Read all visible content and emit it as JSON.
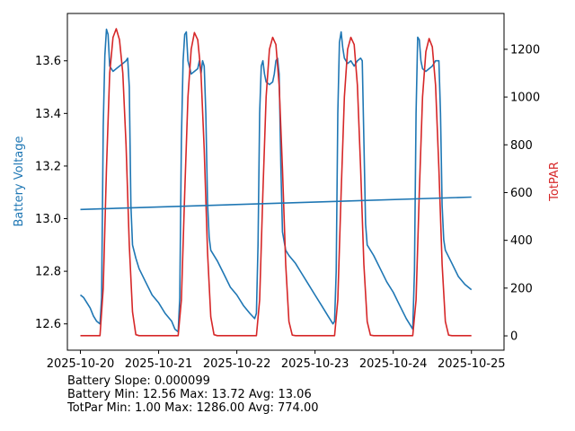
{
  "chart_data": {
    "type": "line",
    "xlabel": "",
    "x_ticks": [
      "2025-10-20",
      "2025-10-21",
      "2025-10-22",
      "2025-10-23",
      "2025-10-24",
      "2025-10-25"
    ],
    "xlim": [
      "2025-10-19T20:00",
      "2025-10-25T10:00"
    ],
    "y_left": {
      "label": "Battery Voltage",
      "color": "#1f77b4",
      "ylim": [
        12.5,
        13.78
      ],
      "ticks": [
        "12.6",
        "12.8",
        "13.0",
        "13.2",
        "13.4",
        "13.6"
      ]
    },
    "y_right": {
      "label": "TotPAR",
      "color": "#d62728",
      "ylim": [
        -60,
        1350
      ],
      "ticks": [
        "0",
        "200",
        "400",
        "600",
        "800",
        "1000",
        "1200"
      ]
    },
    "series": [
      {
        "name": "Battery Voltage",
        "axis": "left",
        "color": "#1f77b4",
        "points": [
          [
            "2025-10-20T00:00",
            12.71
          ],
          [
            "2025-10-20T01:00",
            12.7
          ],
          [
            "2025-10-20T02:00",
            12.68
          ],
          [
            "2025-10-20T03:00",
            12.66
          ],
          [
            "2025-10-20T04:00",
            12.63
          ],
          [
            "2025-10-20T05:00",
            12.61
          ],
          [
            "2025-10-20T06:00",
            12.6
          ],
          [
            "2025-10-20T06:30",
            12.7
          ],
          [
            "2025-10-20T07:00",
            13.35
          ],
          [
            "2025-10-20T07:30",
            13.62
          ],
          [
            "2025-10-20T08:00",
            13.72
          ],
          [
            "2025-10-20T08:30",
            13.7
          ],
          [
            "2025-10-20T09:00",
            13.58
          ],
          [
            "2025-10-20T10:00",
            13.56
          ],
          [
            "2025-10-20T11:00",
            13.57
          ],
          [
            "2025-10-20T12:00",
            13.58
          ],
          [
            "2025-10-20T13:00",
            13.59
          ],
          [
            "2025-10-20T14:00",
            13.6
          ],
          [
            "2025-10-20T14:30",
            13.61
          ],
          [
            "2025-10-20T15:00",
            13.5
          ],
          [
            "2025-10-20T15:30",
            13.05
          ],
          [
            "2025-10-20T16:00",
            12.9
          ],
          [
            "2025-10-20T17:00",
            12.85
          ],
          [
            "2025-10-20T18:00",
            12.81
          ],
          [
            "2025-10-20T20:00",
            12.76
          ],
          [
            "2025-10-20T22:00",
            12.71
          ],
          [
            "2025-10-21T00:00",
            12.68
          ],
          [
            "2025-10-21T02:00",
            12.64
          ],
          [
            "2025-10-21T04:00",
            12.61
          ],
          [
            "2025-10-21T05:00",
            12.58
          ],
          [
            "2025-10-21T06:00",
            12.57
          ],
          [
            "2025-10-21T06:30",
            12.7
          ],
          [
            "2025-10-21T07:00",
            13.3
          ],
          [
            "2025-10-21T07:30",
            13.6
          ],
          [
            "2025-10-21T08:00",
            13.7
          ],
          [
            "2025-10-21T08:30",
            13.71
          ],
          [
            "2025-10-21T09:00",
            13.6
          ],
          [
            "2025-10-21T10:00",
            13.55
          ],
          [
            "2025-10-21T11:00",
            13.56
          ],
          [
            "2025-10-21T12:00",
            13.57
          ],
          [
            "2025-10-21T12:30",
            13.6
          ],
          [
            "2025-10-21T13:00",
            13.55
          ],
          [
            "2025-10-21T13:30",
            13.6
          ],
          [
            "2025-10-21T14:00",
            13.58
          ],
          [
            "2025-10-21T14:30",
            13.4
          ],
          [
            "2025-10-21T15:00",
            13.06
          ],
          [
            "2025-10-21T15:30",
            12.93
          ],
          [
            "2025-10-21T16:00",
            12.88
          ],
          [
            "2025-10-21T18:00",
            12.84
          ],
          [
            "2025-10-21T20:00",
            12.79
          ],
          [
            "2025-10-21T22:00",
            12.74
          ],
          [
            "2025-10-22T00:00",
            12.71
          ],
          [
            "2025-10-22T02:00",
            12.67
          ],
          [
            "2025-10-22T04:00",
            12.64
          ],
          [
            "2025-10-22T05:30",
            12.62
          ],
          [
            "2025-10-22T06:00",
            12.64
          ],
          [
            "2025-10-22T06:30",
            12.9
          ],
          [
            "2025-10-22T07:00",
            13.4
          ],
          [
            "2025-10-22T07:30",
            13.58
          ],
          [
            "2025-10-22T08:00",
            13.6
          ],
          [
            "2025-10-22T08:30",
            13.55
          ],
          [
            "2025-10-22T09:00",
            13.52
          ],
          [
            "2025-10-22T10:00",
            13.51
          ],
          [
            "2025-10-22T11:00",
            13.52
          ],
          [
            "2025-10-22T11:30",
            13.55
          ],
          [
            "2025-10-22T12:00",
            13.6
          ],
          [
            "2025-10-22T12:30",
            13.61
          ],
          [
            "2025-10-22T13:00",
            13.55
          ],
          [
            "2025-10-22T13:30",
            13.2
          ],
          [
            "2025-10-22T14:00",
            12.95
          ],
          [
            "2025-10-22T15:00",
            12.88
          ],
          [
            "2025-10-22T16:00",
            12.86
          ],
          [
            "2025-10-22T18:00",
            12.83
          ],
          [
            "2025-10-22T20:00",
            12.79
          ],
          [
            "2025-10-22T22:00",
            12.75
          ],
          [
            "2025-10-23T00:00",
            12.71
          ],
          [
            "2025-10-23T02:00",
            12.67
          ],
          [
            "2025-10-23T04:00",
            12.63
          ],
          [
            "2025-10-23T05:30",
            12.6
          ],
          [
            "2025-10-23T06:00",
            12.61
          ],
          [
            "2025-10-23T06:30",
            12.8
          ],
          [
            "2025-10-23T07:00",
            13.4
          ],
          [
            "2025-10-23T07:30",
            13.67
          ],
          [
            "2025-10-23T08:00",
            13.71
          ],
          [
            "2025-10-23T08:30",
            13.65
          ],
          [
            "2025-10-23T09:00",
            13.61
          ],
          [
            "2025-10-23T10:00",
            13.59
          ],
          [
            "2025-10-23T11:00",
            13.6
          ],
          [
            "2025-10-23T12:00",
            13.58
          ],
          [
            "2025-10-23T13:00",
            13.6
          ],
          [
            "2025-10-23T14:00",
            13.61
          ],
          [
            "2025-10-23T14:30",
            13.6
          ],
          [
            "2025-10-23T15:00",
            13.3
          ],
          [
            "2025-10-23T15:30",
            12.98
          ],
          [
            "2025-10-23T16:00",
            12.9
          ],
          [
            "2025-10-23T18:00",
            12.86
          ],
          [
            "2025-10-23T20:00",
            12.81
          ],
          [
            "2025-10-23T22:00",
            12.76
          ],
          [
            "2025-10-24T00:00",
            12.72
          ],
          [
            "2025-10-24T02:00",
            12.67
          ],
          [
            "2025-10-24T04:00",
            12.62
          ],
          [
            "2025-10-24T05:30",
            12.59
          ],
          [
            "2025-10-24T06:00",
            12.58
          ],
          [
            "2025-10-24T06:30",
            12.8
          ],
          [
            "2025-10-24T07:00",
            13.4
          ],
          [
            "2025-10-24T07:30",
            13.69
          ],
          [
            "2025-10-24T08:00",
            13.68
          ],
          [
            "2025-10-24T08:30",
            13.6
          ],
          [
            "2025-10-24T09:00",
            13.57
          ],
          [
            "2025-10-24T10:00",
            13.56
          ],
          [
            "2025-10-24T11:00",
            13.57
          ],
          [
            "2025-10-24T12:00",
            13.58
          ],
          [
            "2025-10-24T13:00",
            13.6
          ],
          [
            "2025-10-24T14:00",
            13.6
          ],
          [
            "2025-10-24T14:30",
            13.4
          ],
          [
            "2025-10-24T15:00",
            13.05
          ],
          [
            "2025-10-24T15:30",
            12.92
          ],
          [
            "2025-10-24T16:00",
            12.88
          ],
          [
            "2025-10-24T18:00",
            12.83
          ],
          [
            "2025-10-24T20:00",
            12.78
          ],
          [
            "2025-10-24T22:00",
            12.75
          ],
          [
            "2025-10-25T00:00",
            12.73
          ]
        ]
      },
      {
        "name": "TotPAR",
        "axis": "right",
        "color": "#d62728",
        "points": [
          [
            "2025-10-20T00:00",
            1
          ],
          [
            "2025-10-20T06:00",
            1
          ],
          [
            "2025-10-20T07:00",
            200
          ],
          [
            "2025-10-20T08:00",
            700
          ],
          [
            "2025-10-20T09:00",
            1100
          ],
          [
            "2025-10-20T10:00",
            1250
          ],
          [
            "2025-10-20T11:00",
            1286
          ],
          [
            "2025-10-20T12:00",
            1240
          ],
          [
            "2025-10-20T13:00",
            1100
          ],
          [
            "2025-10-20T14:00",
            800
          ],
          [
            "2025-10-20T15:00",
            380
          ],
          [
            "2025-10-20T16:00",
            100
          ],
          [
            "2025-10-20T17:00",
            5
          ],
          [
            "2025-10-20T18:00",
            1
          ],
          [
            "2025-10-21T06:00",
            1
          ],
          [
            "2025-10-21T07:00",
            150
          ],
          [
            "2025-10-21T08:00",
            600
          ],
          [
            "2025-10-21T09:00",
            1000
          ],
          [
            "2025-10-21T10:00",
            1200
          ],
          [
            "2025-10-21T11:00",
            1270
          ],
          [
            "2025-10-21T12:00",
            1240
          ],
          [
            "2025-10-21T13:00",
            1100
          ],
          [
            "2025-10-21T14:00",
            780
          ],
          [
            "2025-10-21T15:00",
            350
          ],
          [
            "2025-10-21T16:00",
            80
          ],
          [
            "2025-10-21T17:00",
            5
          ],
          [
            "2025-10-21T18:00",
            1
          ],
          [
            "2025-10-22T06:00",
            1
          ],
          [
            "2025-10-22T07:00",
            150
          ],
          [
            "2025-10-22T08:00",
            600
          ],
          [
            "2025-10-22T09:00",
            1000
          ],
          [
            "2025-10-22T10:00",
            1200
          ],
          [
            "2025-10-22T11:00",
            1250
          ],
          [
            "2025-10-22T12:00",
            1220
          ],
          [
            "2025-10-22T13:00",
            1050
          ],
          [
            "2025-10-22T14:00",
            700
          ],
          [
            "2025-10-22T15:00",
            300
          ],
          [
            "2025-10-22T16:00",
            60
          ],
          [
            "2025-10-22T17:00",
            3
          ],
          [
            "2025-10-22T18:00",
            1
          ],
          [
            "2025-10-23T06:00",
            1
          ],
          [
            "2025-10-23T07:00",
            150
          ],
          [
            "2025-10-23T08:00",
            600
          ],
          [
            "2025-10-23T09:00",
            1000
          ],
          [
            "2025-10-23T10:00",
            1200
          ],
          [
            "2025-10-23T11:00",
            1250
          ],
          [
            "2025-10-23T12:00",
            1220
          ],
          [
            "2025-10-23T13:00",
            1050
          ],
          [
            "2025-10-23T14:00",
            700
          ],
          [
            "2025-10-23T15:00",
            300
          ],
          [
            "2025-10-23T16:00",
            60
          ],
          [
            "2025-10-23T17:00",
            3
          ],
          [
            "2025-10-23T18:00",
            1
          ],
          [
            "2025-10-24T06:00",
            1
          ],
          [
            "2025-10-24T07:00",
            150
          ],
          [
            "2025-10-24T08:00",
            600
          ],
          [
            "2025-10-24T09:00",
            1000
          ],
          [
            "2025-10-24T10:00",
            1190
          ],
          [
            "2025-10-24T11:00",
            1245
          ],
          [
            "2025-10-24T12:00",
            1210
          ],
          [
            "2025-10-24T13:00",
            1050
          ],
          [
            "2025-10-24T14:00",
            700
          ],
          [
            "2025-10-24T15:00",
            300
          ],
          [
            "2025-10-24T16:00",
            60
          ],
          [
            "2025-10-24T17:00",
            3
          ],
          [
            "2025-10-24T18:00",
            1
          ],
          [
            "2025-10-25T00:00",
            1
          ]
        ]
      },
      {
        "name": "Battery Slope",
        "axis": "left",
        "color": "#1f77b4",
        "points": [
          [
            "2025-10-20T00:00",
            13.035
          ],
          [
            "2025-10-25T00:00",
            13.082
          ]
        ]
      }
    ]
  },
  "stats": {
    "line1": "Battery Slope: 0.000099",
    "line2": "Battery Min: 12.56 Max: 13.72 Avg: 13.06",
    "line3": "TotPar Min: 1.00 Max: 1286.00 Avg: 774.00"
  }
}
